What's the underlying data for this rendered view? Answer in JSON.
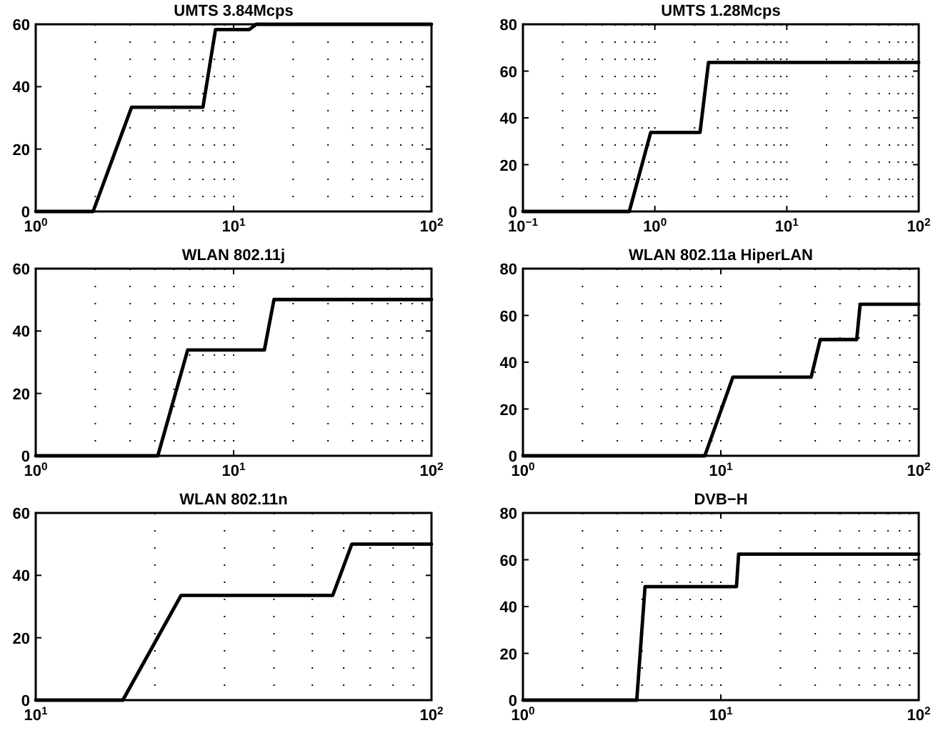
{
  "chart_data": [
    {
      "type": "line",
      "title": "UMTS 3.84Mcps",
      "log": "x",
      "grid": "x",
      "x": [
        1,
        1.95,
        3.05,
        7.0,
        8.1,
        12,
        13,
        100
      ],
      "series": [
        {
          "color": "#000000",
          "values": [
            0,
            0,
            33.4,
            33.4,
            58.3,
            58.3,
            60,
            60
          ]
        }
      ],
      "xlim": [
        1,
        100
      ],
      "ylim": [
        0,
        60
      ],
      "xticks": [
        {
          "value": 1,
          "label": "10$^{0}$"
        },
        {
          "value": 10,
          "label": "10$^{1}$"
        },
        {
          "value": 100,
          "label": "10$^{2}$"
        }
      ],
      "yticks": [
        0,
        20,
        40,
        60
      ]
    },
    {
      "type": "line",
      "title": "UMTS 1.28Mcps",
      "log": "x",
      "grid": "x",
      "x": [
        0.1,
        0.64,
        0.93,
        2.2,
        2.55,
        100
      ],
      "series": [
        {
          "color": "#000000",
          "values": [
            0,
            0,
            33.8,
            33.8,
            63.7,
            63.7
          ]
        }
      ],
      "xlim": [
        0.1,
        100
      ],
      "ylim": [
        0,
        80
      ],
      "xticks": [
        {
          "value": 0.1,
          "label": "10$^{−1}$"
        },
        {
          "value": 1,
          "label": "10$^{0}$"
        },
        {
          "value": 10,
          "label": "10$^{1}$"
        },
        {
          "value": 100,
          "label": "10$^{2}$"
        }
      ],
      "yticks": [
        0,
        20,
        40,
        60,
        80
      ]
    },
    {
      "type": "line",
      "title": "WLAN 802.11j",
      "log": "x",
      "grid": "x",
      "x": [
        1,
        4.14,
        5.86,
        14.3,
        16,
        100
      ],
      "series": [
        {
          "color": "#000000",
          "values": [
            0,
            0,
            33.9,
            33.9,
            50.1,
            50.1
          ]
        }
      ],
      "xlim": [
        1,
        100
      ],
      "ylim": [
        0,
        60
      ],
      "xticks": [
        {
          "value": 1,
          "label": "10$^{0}$"
        },
        {
          "value": 10,
          "label": "10$^{1}$"
        },
        {
          "value": 100,
          "label": "10$^{2}$"
        }
      ],
      "yticks": [
        0,
        20,
        40,
        60
      ]
    },
    {
      "type": "line",
      "title": "WLAN 802.11a HiperLAN",
      "log": "x",
      "grid": "x",
      "x": [
        1,
        8.3,
        11.5,
        28.6,
        31.8,
        48.6,
        50.6,
        100
      ],
      "series": [
        {
          "color": "#000000",
          "values": [
            0,
            0,
            33.6,
            33.6,
            49.7,
            49.7,
            64.8,
            64.8
          ]
        }
      ],
      "xlim": [
        1,
        100
      ],
      "ylim": [
        0,
        80
      ],
      "xticks": [
        {
          "value": 1,
          "label": "10$^{0}$"
        },
        {
          "value": 10,
          "label": "10$^{1}$"
        },
        {
          "value": 100,
          "label": "10$^{2}$"
        }
      ],
      "yticks": [
        0,
        20,
        40,
        60,
        80
      ]
    },
    {
      "type": "line",
      "title": "WLAN 802.11n",
      "log": "x",
      "grid": "x",
      "x": [
        10,
        16.6,
        23.3,
        56.3,
        62.9,
        100
      ],
      "series": [
        {
          "color": "#000000",
          "values": [
            0,
            0,
            33.6,
            33.6,
            50,
            50
          ]
        }
      ],
      "xlim": [
        10,
        100
      ],
      "ylim": [
        0,
        60
      ],
      "xticks": [
        {
          "value": 10,
          "label": "10$^{1}$"
        },
        {
          "value": 100,
          "label": "10$^{2}$"
        }
      ],
      "yticks": [
        0,
        20,
        40,
        60
      ]
    },
    {
      "type": "line",
      "title": "DVB−H",
      "log": "x",
      "grid": "x",
      "x": [
        1,
        3.76,
        4.14,
        12,
        12.3,
        100
      ],
      "series": [
        {
          "color": "#000000",
          "values": [
            0,
            0,
            48.5,
            48.5,
            62.4,
            62.4
          ]
        }
      ],
      "xlim": [
        1,
        100
      ],
      "ylim": [
        0,
        80
      ],
      "xticks": [
        {
          "value": 1,
          "label": "10$^{0}$"
        },
        {
          "value": 10,
          "label": "10$^{1}$"
        },
        {
          "value": 100,
          "label": "10$^{2}$"
        }
      ],
      "yticks": [
        0,
        20,
        40,
        60,
        80
      ]
    }
  ]
}
